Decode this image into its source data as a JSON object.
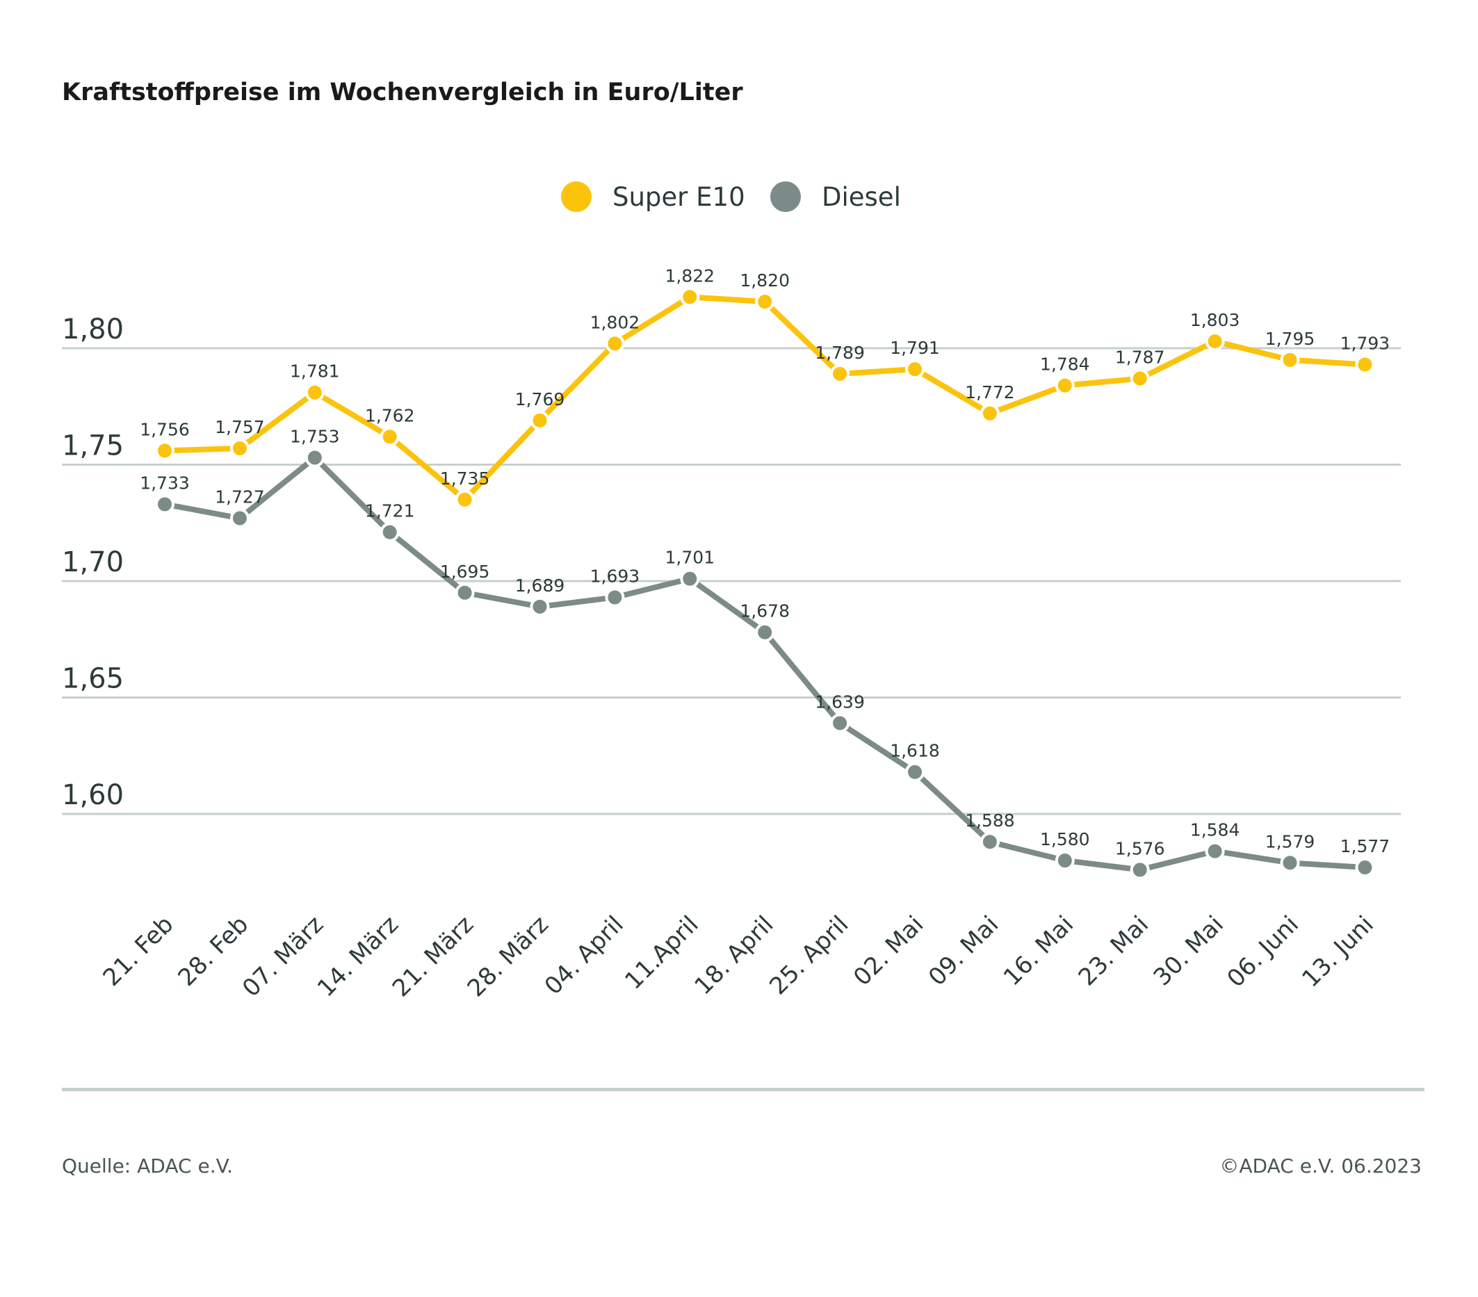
{
  "chart_data": {
    "type": "line",
    "title": "Kraftstoffpreise im Wochenvergleich in Euro/Liter",
    "xlabel": "",
    "ylabel": "",
    "categories": [
      "21. Feb",
      "28. Feb",
      "07. März",
      "14. März",
      "21. März",
      "28. März",
      "04. April",
      "11.April",
      "18. April",
      "25. April",
      "02. Mai",
      "09. Mai",
      "16. Mai",
      "23. Mai",
      "30. Mai",
      "06. Juni",
      "13. Juni"
    ],
    "yticks": [
      1.8,
      1.75,
      1.7,
      1.65,
      1.6
    ],
    "ytick_labels": [
      "1,80",
      "1,75",
      "1,70",
      "1,65",
      "1,60"
    ],
    "ylim": [
      1.55,
      1.84
    ],
    "grid": "horizontal",
    "legend_position": "top-center",
    "series": [
      {
        "name": "Super E10",
        "color": "#fcc30d",
        "values": [
          1.756,
          1.757,
          1.781,
          1.762,
          1.735,
          1.769,
          1.802,
          1.822,
          1.82,
          1.789,
          1.791,
          1.772,
          1.784,
          1.787,
          1.803,
          1.795,
          1.793
        ],
        "labels": [
          "1,756",
          "1,757",
          "1,781",
          "1,762",
          "1,735",
          "1,769",
          "1,802",
          "1,822",
          "1,820",
          "1,789",
          "1,791",
          "1,772",
          "1,784",
          "1,787",
          "1,803",
          "1,795",
          "1,793"
        ]
      },
      {
        "name": "Diesel",
        "color": "#7c8b88",
        "values": [
          1.733,
          1.727,
          1.753,
          1.721,
          1.695,
          1.689,
          1.693,
          1.701,
          1.678,
          1.639,
          1.618,
          1.588,
          1.58,
          1.576,
          1.584,
          1.579,
          1.577
        ],
        "labels": [
          "1,733",
          "1,727",
          "1,753",
          "1,721",
          "1,695",
          "1,689",
          "1,693",
          "1,701",
          "1,678",
          "1,639",
          "1,618",
          "1,588",
          "1,580",
          "1,576",
          "1,584",
          "1,579",
          "1,577"
        ]
      }
    ]
  },
  "footer": {
    "source": "Quelle: ADAC e.V.",
    "copyright": "©ADAC e.V. 06.2023"
  }
}
